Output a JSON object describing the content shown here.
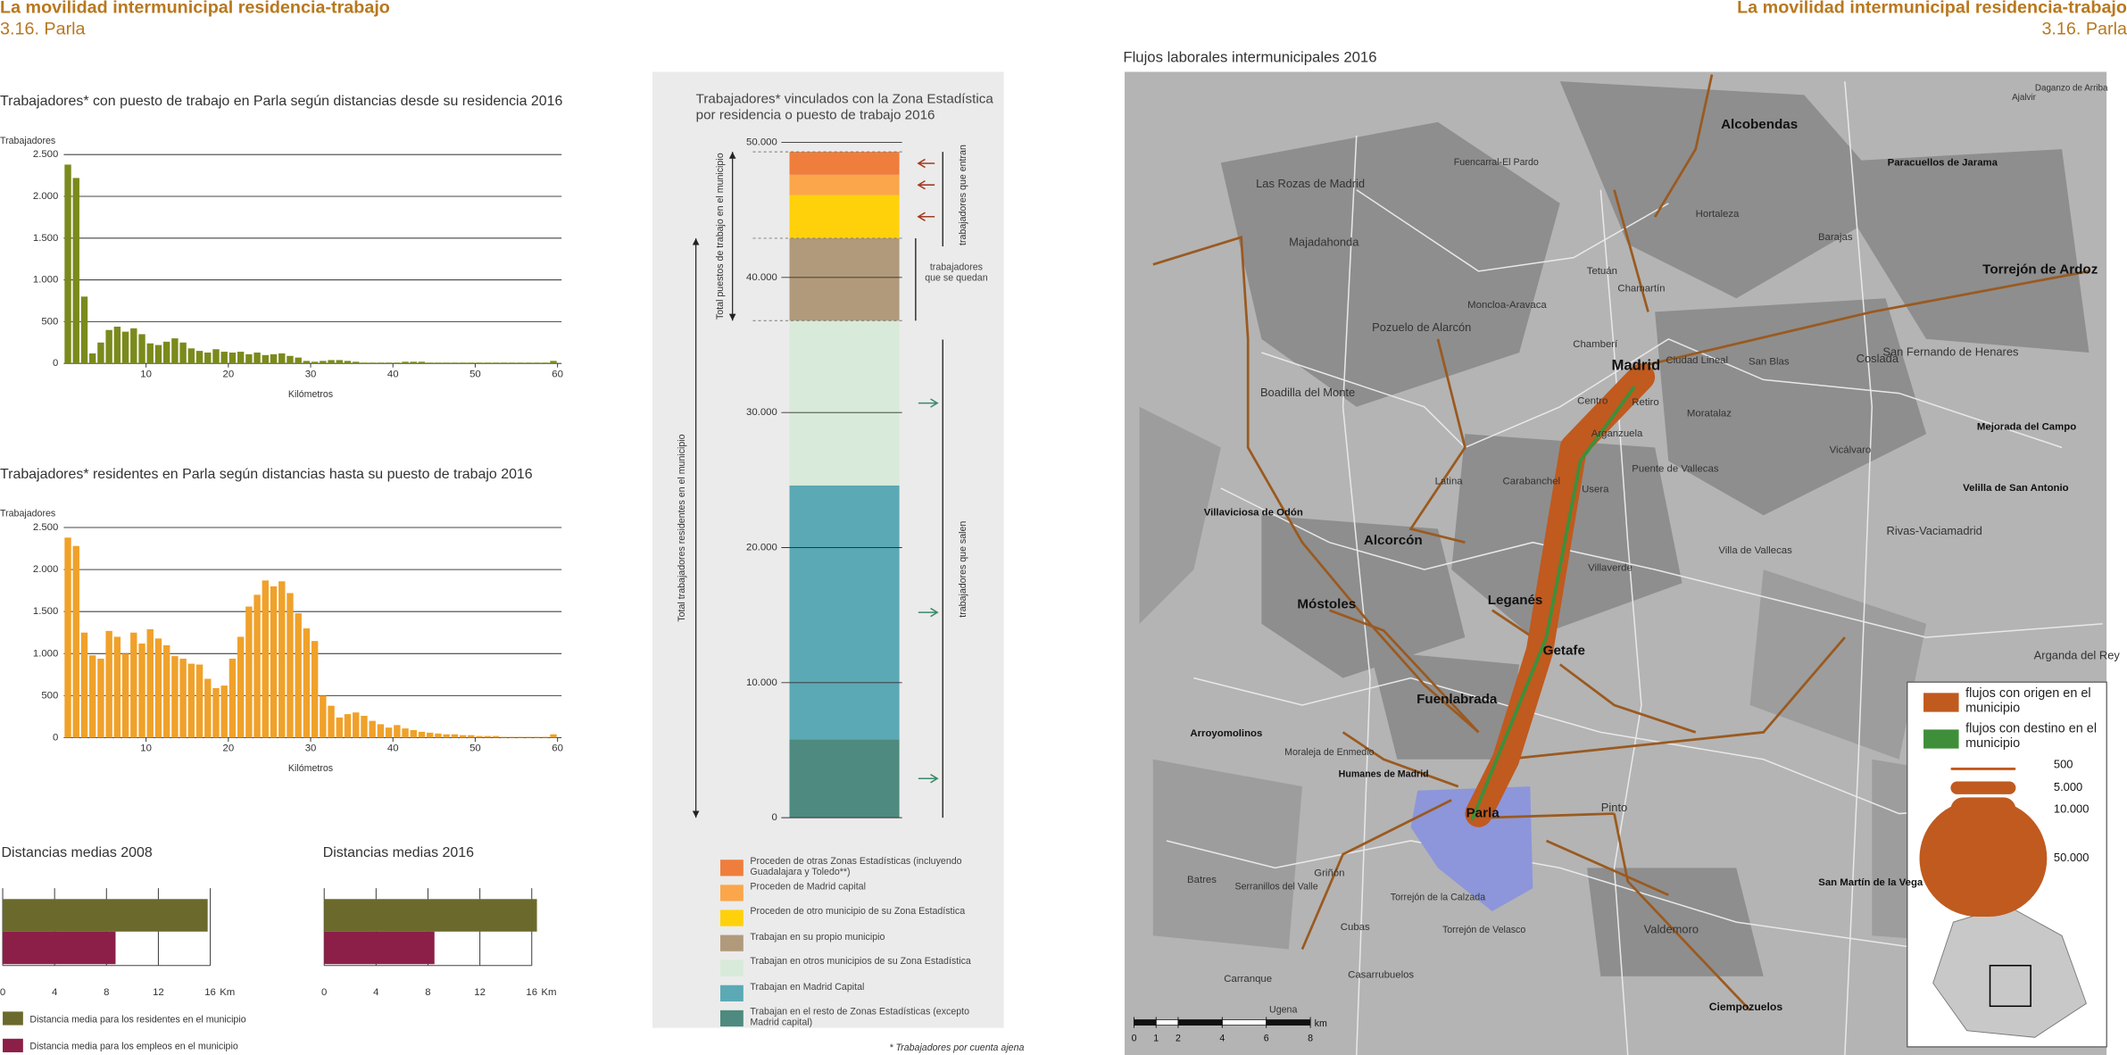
{
  "header": {
    "left": {
      "title": "La movilidad intermunicipal residencia-trabajo",
      "subtitle": "3.16. Parla"
    },
    "right": {
      "title": "La movilidad intermunicipal residencia-trabajo",
      "subtitle": "3.16. Parla"
    }
  },
  "chart_data": [
    {
      "type": "histogram",
      "title": "Trabajadores* con puesto de trabajo en Parla según distancias desde su residencia 2016",
      "ylabel": "Trabajadores",
      "xlabel": "Kilómetros",
      "color": "#7b8a1c",
      "bins": [
        0,
        1,
        2,
        3,
        4,
        5,
        6,
        7,
        8,
        9,
        10,
        11,
        12,
        13,
        14,
        15,
        16,
        17,
        18,
        19,
        20,
        21,
        22,
        23,
        24,
        25,
        26,
        27,
        28,
        29,
        30,
        31,
        32,
        33,
        34,
        35,
        36,
        37,
        38,
        39,
        40,
        41,
        42,
        43,
        44,
        45,
        46,
        47,
        48,
        49,
        50,
        51,
        52,
        53,
        54,
        55,
        56,
        57,
        58,
        59,
        60
      ],
      "values": [
        2380,
        2220,
        800,
        120,
        250,
        400,
        440,
        380,
        420,
        350,
        240,
        220,
        260,
        300,
        250,
        180,
        150,
        130,
        170,
        140,
        130,
        140,
        110,
        130,
        100,
        110,
        120,
        90,
        70,
        30,
        20,
        30,
        40,
        40,
        30,
        20,
        10,
        10,
        10,
        10,
        10,
        20,
        20,
        20,
        10,
        10,
        10,
        10,
        10,
        10,
        10,
        10,
        10,
        10,
        10,
        10,
        10,
        10,
        10,
        30
      ],
      "xlim": [
        0,
        60
      ],
      "xticks": [
        10,
        20,
        30,
        40,
        50,
        60
      ],
      "ylim": [
        0,
        2500
      ],
      "yticks": [
        0,
        500,
        {
          "value": 1000,
          "label": "1.000"
        },
        {
          "value": 1500,
          "label": "1.500"
        },
        {
          "value": 2000,
          "label": "2.000"
        },
        {
          "value": 2500,
          "label": "2.500"
        }
      ],
      "grid": true
    },
    {
      "type": "histogram",
      "title": "Trabajadores* residentes en Parla según distancias hasta su puesto de trabajo 2016",
      "ylabel": "Trabajadores",
      "xlabel": "Kilómetros",
      "color": "#f0a12a",
      "bins": [
        0,
        1,
        2,
        3,
        4,
        5,
        6,
        7,
        8,
        9,
        10,
        11,
        12,
        13,
        14,
        15,
        16,
        17,
        18,
        19,
        20,
        21,
        22,
        23,
        24,
        25,
        26,
        27,
        28,
        29,
        30,
        31,
        32,
        33,
        34,
        35,
        36,
        37,
        38,
        39,
        40,
        41,
        42,
        43,
        44,
        45,
        46,
        47,
        48,
        49,
        50,
        51,
        52,
        53,
        54,
        55,
        56,
        57,
        58,
        59,
        60
      ],
      "values": [
        2380,
        2280,
        1250,
        980,
        940,
        1270,
        1200,
        1000,
        1250,
        1120,
        1290,
        1180,
        1100,
        970,
        940,
        880,
        870,
        700,
        590,
        620,
        940,
        1200,
        1560,
        1700,
        1870,
        1800,
        1860,
        1720,
        1480,
        1300,
        1150,
        500,
        380,
        240,
        280,
        300,
        260,
        200,
        160,
        120,
        150,
        110,
        90,
        70,
        60,
        50,
        40,
        40,
        30,
        30,
        20,
        20,
        20,
        10,
        10,
        10,
        10,
        10,
        10,
        40
      ],
      "xlim": [
        0,
        60
      ],
      "xticks": [
        10,
        20,
        30,
        40,
        50,
        60
      ],
      "ylim": [
        0,
        2500
      ],
      "yticks": [
        0,
        500,
        {
          "value": 1000,
          "label": "1.000"
        },
        {
          "value": 1500,
          "label": "1.500"
        },
        {
          "value": 2000,
          "label": "2.000"
        },
        {
          "value": 2500,
          "label": "2.500"
        }
      ],
      "grid": true
    },
    {
      "type": "barh",
      "title": "Distancias medias 2008",
      "xlabel": "Km",
      "xlim": [
        0,
        16
      ],
      "xticks": [
        0,
        4,
        8,
        12,
        16
      ],
      "grid": true,
      "series": [
        {
          "name": "Distancia media para los residentes en el municipio",
          "color": "#6b6a2c",
          "values": [
            15.8
          ]
        },
        {
          "name": "Distancia media para los empleos en el municipio",
          "color": "#8c1f48",
          "values": [
            8.7
          ]
        }
      ]
    },
    {
      "type": "barh",
      "title": "Distancias medias 2016",
      "xlabel": "Km",
      "xlim": [
        0,
        16
      ],
      "xticks": [
        0,
        4,
        8,
        12,
        16
      ],
      "grid": true,
      "series": [
        {
          "color": "#6b6a2c",
          "values": [
            16.4
          ]
        },
        {
          "color": "#8c1f48",
          "values": [
            8.5
          ]
        }
      ]
    },
    {
      "type": "stacked_bar",
      "title": "Trabajadores* vinculados con la Zona Estadística por residencia o puesto de trabajo 2016",
      "ylim": [
        0,
        50000
      ],
      "yticks": [
        0,
        {
          "value": 10000,
          "label": "10.000"
        },
        {
          "value": 20000,
          "label": "20.000"
        },
        {
          "value": 30000,
          "label": "30.000"
        },
        {
          "value": 40000,
          "label": "40.000"
        },
        {
          "value": 50000,
          "label": "50.000"
        }
      ],
      "series": [
        {
          "name": "Trabajan en el resto de Zonas Estadísticas (excepto Madrid capital)",
          "color": "#4e8a7f",
          "values": [
            5800
          ]
        },
        {
          "name": "Trabajan en Madrid Capital",
          "color": "#5ba9b5",
          "values": [
            18800
          ]
        },
        {
          "name": "Trabajan en otros municipios de su Zona Estadística",
          "color": "#d8ead9",
          "values": [
            12200
          ]
        },
        {
          "name": "Trabajan en su propio municipio",
          "color": "#b19a7b",
          "values": [
            6100
          ]
        },
        {
          "name": "Proceden de otro municipio de su Zona Estadística",
          "color": "#ffd10a",
          "values": [
            3200
          ]
        },
        {
          "name": "Proceden de Madrid capital",
          "color": "#fba64a",
          "values": [
            1500
          ]
        },
        {
          "name": "Proceden de otras Zonas Estadísticas (incluyendo Guadalajara y Toledo**)",
          "color": "#ef7e3c",
          "values": [
            1700
          ]
        }
      ],
      "annotations": [
        "Total puestos de trabajo en el municipio",
        "Total trabajadores residentes en el municipio",
        "trabajadores que entran",
        "trabajadores que se quedan",
        "trabajadores que salen"
      ]
    }
  ],
  "footnote": "* Trabajadores por cuenta ajena",
  "map": {
    "title": "Flujos laborales intermunicipales 2016",
    "places": [
      "Alcobendas",
      "Fuencarral-El Pardo",
      "Las Rozas de Madrid",
      "Majadahonda",
      "Paracuellos de Jarama",
      "Hortaleza",
      "Barajas",
      "Torrejón de Ardoz",
      "Tetuán",
      "Chamartín",
      "Moncloa-Aravaca",
      "Pozuelo de Alarcón",
      "Chamberí",
      "Madrid",
      "Ciudad Lineal",
      "San Blas",
      "Coslada",
      "San Fernando de Henares",
      "Boadilla del Monte",
      "Centro",
      "Retiro",
      "Moratalaz",
      "Arganzuela",
      "Mejorada del Campo",
      "Vicálvaro",
      "Latina",
      "Carabanchel",
      "Usera",
      "Puente de Vallecas",
      "Velilla de San Antonio",
      "Villaviciosa de Odón",
      "Alcorcón",
      "Rivas-Vaciamadrid",
      "Villa de Vallecas",
      "Villaverde",
      "Leganés",
      "Móstoles",
      "Getafe",
      "Arganda del Rey",
      "Fuenlabrada",
      "Arroyomolinos",
      "Moraleja de Enmedio",
      "Humanes de Madrid",
      "Parla",
      "Pinto",
      "Batres",
      "Serranillos del Valle",
      "Griñón",
      "Torrejón de la Calzada",
      "Cubas",
      "Torrejón de Velasco",
      "Valdemoro",
      "San Martín de la Vega",
      "Carranque",
      "Casarrubuelos",
      "Ugena",
      "Ciempozuelos",
      "Ajalvir",
      "Daganzo de Arriba"
    ],
    "legend": {
      "origin": "flujos con origen en el municipio",
      "destination": "flujos con destino en el municipio",
      "sizes": [
        500,
        {
          "value": 5000,
          "label": "5.000"
        },
        {
          "value": 10000,
          "label": "10.000"
        },
        {
          "value": 50000,
          "label": "50.000"
        }
      ]
    },
    "scale": {
      "ticks": [
        0,
        1,
        2,
        4,
        6,
        8
      ],
      "unit": "km"
    }
  }
}
